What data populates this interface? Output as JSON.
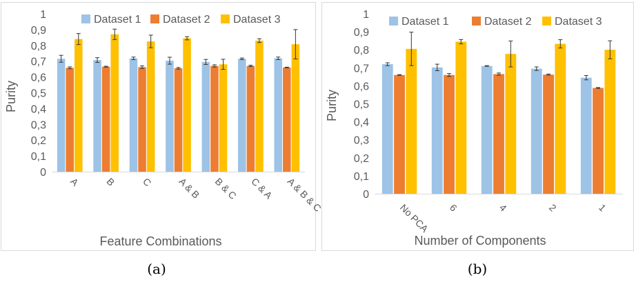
{
  "colors": {
    "series": [
      "#9dc3e6",
      "#ed7d31",
      "#ffc000"
    ],
    "panel_border": "#d9d9d9",
    "axis_text": "#595959",
    "error_bar": "#333333"
  },
  "chart_data": [
    {
      "type": "bar",
      "caption": "(a)",
      "xlabel": "Feature Combinations",
      "ylabel": "Purity",
      "ylim": [
        0,
        1
      ],
      "yticks": [
        "0",
        "0,1",
        "0,2",
        "0,3",
        "0,4",
        "0,5",
        "0,6",
        "0,7",
        "0,8",
        "0,9",
        "1"
      ],
      "grid": false,
      "legend_position": "top",
      "categories": [
        "A",
        "B",
        "C",
        "A & B",
        "B & C",
        "C & A",
        "A & B & C"
      ],
      "series": [
        {
          "name": "Dataset 1",
          "values": [
            0.715,
            0.707,
            0.718,
            0.703,
            0.695,
            0.715,
            0.718
          ],
          "errors": [
            0.022,
            0.015,
            0.008,
            0.022,
            0.016,
            0.005,
            0.008
          ]
        },
        {
          "name": "Dataset 2",
          "values": [
            0.658,
            0.665,
            0.662,
            0.655,
            0.67,
            0.67,
            0.66
          ],
          "errors": [
            0.006,
            0.003,
            0.008,
            0.005,
            0.007,
            0.004,
            0.002
          ]
        },
        {
          "name": "Dataset 3",
          "values": [
            0.84,
            0.87,
            0.825,
            0.845,
            0.68,
            0.83,
            0.807
          ],
          "errors": [
            0.035,
            0.033,
            0.04,
            0.01,
            0.032,
            0.012,
            0.093
          ]
        }
      ]
    },
    {
      "type": "bar",
      "caption": "(b)",
      "xlabel": "Number of Components",
      "ylabel": "Purity",
      "ylim": [
        0,
        1
      ],
      "yticks": [
        "0",
        "0,1",
        "0,2",
        "0,3",
        "0,4",
        "0,5",
        "0,6",
        "0,7",
        "0,8",
        "0,9",
        "1"
      ],
      "grid": false,
      "legend_position": "top",
      "categories": [
        "No PCA",
        "6",
        "4",
        "2",
        "1"
      ],
      "series": [
        {
          "name": "Dataset 1",
          "values": [
            0.72,
            0.702,
            0.71,
            0.695,
            0.645
          ],
          "errors": [
            0.008,
            0.018,
            0.002,
            0.01,
            0.012
          ]
        },
        {
          "name": "Dataset 2",
          "values": [
            0.66,
            0.66,
            0.665,
            0.662,
            0.588
          ],
          "errors": [
            0.002,
            0.008,
            0.006,
            0.003,
            0.002
          ]
        },
        {
          "name": "Dataset 3",
          "values": [
            0.805,
            0.845,
            0.777,
            0.833,
            0.8
          ],
          "errors": [
            0.093,
            0.012,
            0.072,
            0.023,
            0.05
          ]
        }
      ]
    }
  ]
}
